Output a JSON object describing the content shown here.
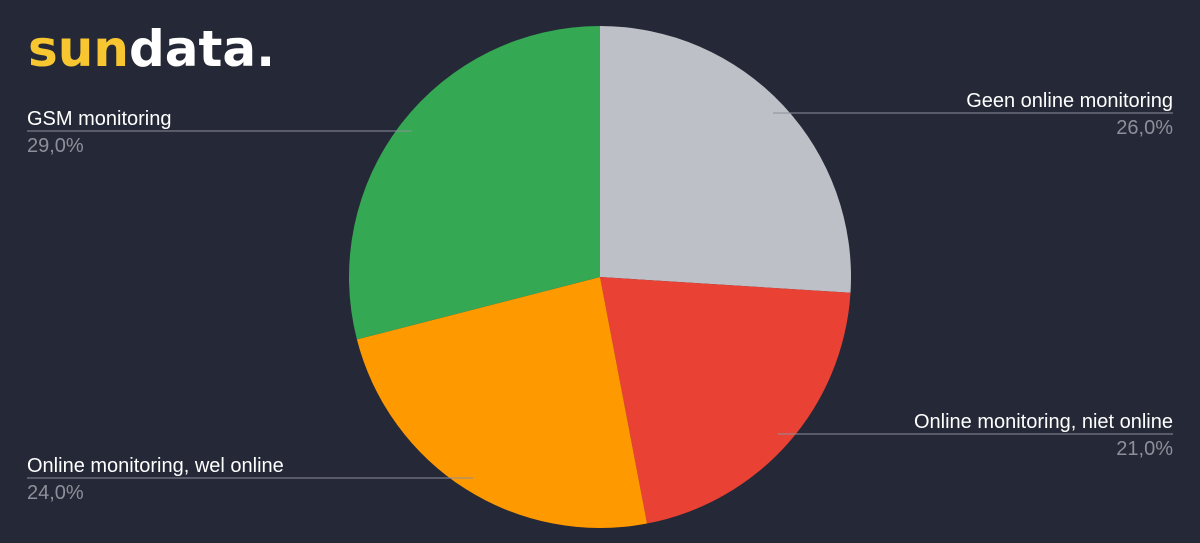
{
  "logo": {
    "accent": "sun",
    "rest": "data."
  },
  "chart_data": {
    "type": "pie",
    "categories": [
      "Geen online monitoring",
      "Online monitoring, niet online",
      "Online monitoring, wel online",
      "GSM monitoring"
    ],
    "values": [
      26,
      21,
      24,
      29
    ],
    "value_labels": [
      "26,0%",
      "21,0%",
      "24,0%",
      "29,0%"
    ],
    "colors": [
      "#bdc0c6",
      "#e94235",
      "#ff9900",
      "#34a853"
    ]
  }
}
